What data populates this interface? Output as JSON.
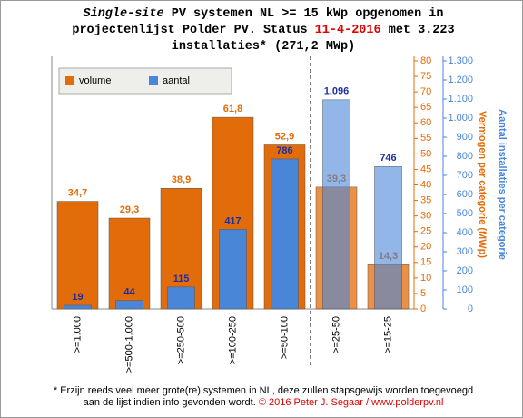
{
  "chart_data": {
    "type": "bar",
    "title": [
      [
        {
          "text": "Single-site",
          "italic": true
        },
        {
          "text": " PV systemen NL >= 15 kWp opgenomen in"
        }
      ],
      [
        {
          "text": "projectenlijst Polder PV. Status "
        },
        {
          "text": "11-4-2016",
          "color": "#e00000"
        },
        {
          "text": " met 3.223"
        }
      ],
      [
        {
          "text": "installaties* (271,2 MWp)"
        }
      ]
    ],
    "categories": [
      ">=1.000",
      ">=500-1.000",
      ">=250-500",
      ">=100-250",
      ">=50-100",
      ">=25-50",
      ">=15-25"
    ],
    "series": [
      {
        "name": "volume",
        "color": "#e36c0a",
        "label_color": "#e36c0a",
        "axis": "y",
        "values": [
          34.7,
          29.3,
          38.9,
          61.8,
          52.9,
          39.3,
          14.3
        ],
        "value_labels": [
          "34,7",
          "29,3",
          "38,9",
          "61,8",
          "52,9",
          "39,3",
          "14,3"
        ],
        "opacity": [
          1,
          1,
          1,
          1,
          1,
          0.75,
          0.75
        ]
      },
      {
        "name": "aantal",
        "color": "#4a86d8",
        "label_color": "#1f2f9f",
        "axis": "y2",
        "values": [
          19,
          44,
          115,
          417,
          786,
          1096,
          746
        ],
        "value_labels": [
          "19",
          "44",
          "115",
          "417",
          "786",
          "1.096",
          "746"
        ],
        "opacity": [
          1,
          1,
          1,
          1,
          1,
          0.6,
          0.6
        ]
      }
    ],
    "ylabel": "Vermogen per categorie (MWp)",
    "y2label": "Aantal installaties per categorie",
    "ylim": [
      0,
      80
    ],
    "yticks": [
      0,
      5,
      10,
      15,
      20,
      25,
      30,
      35,
      40,
      45,
      50,
      55,
      60,
      65,
      70,
      75,
      80
    ],
    "y2lim": [
      0,
      1300
    ],
    "y2ticks": [
      0,
      100,
      200,
      300,
      400,
      500,
      600,
      700,
      800,
      900,
      {
        "value": 1000,
        "label": "1.000"
      },
      {
        "value": 1100,
        "label": "1.100"
      },
      {
        "value": 1200,
        "label": "1.200"
      },
      {
        "value": 1300,
        "label": "1.300"
      }
    ],
    "footnote": [
      [
        {
          "text": "* Erzijn reeds veel meer grote(re) systemen in NL, deze zullen stapsgewijs worden toegevoegd"
        }
      ],
      [
        {
          "text": "aan de lijst indien info gevonden wordt. "
        },
        {
          "text": "© 2016 Peter J. Segaar / www.polderpv.nl",
          "color": "#e00000"
        }
      ]
    ]
  }
}
